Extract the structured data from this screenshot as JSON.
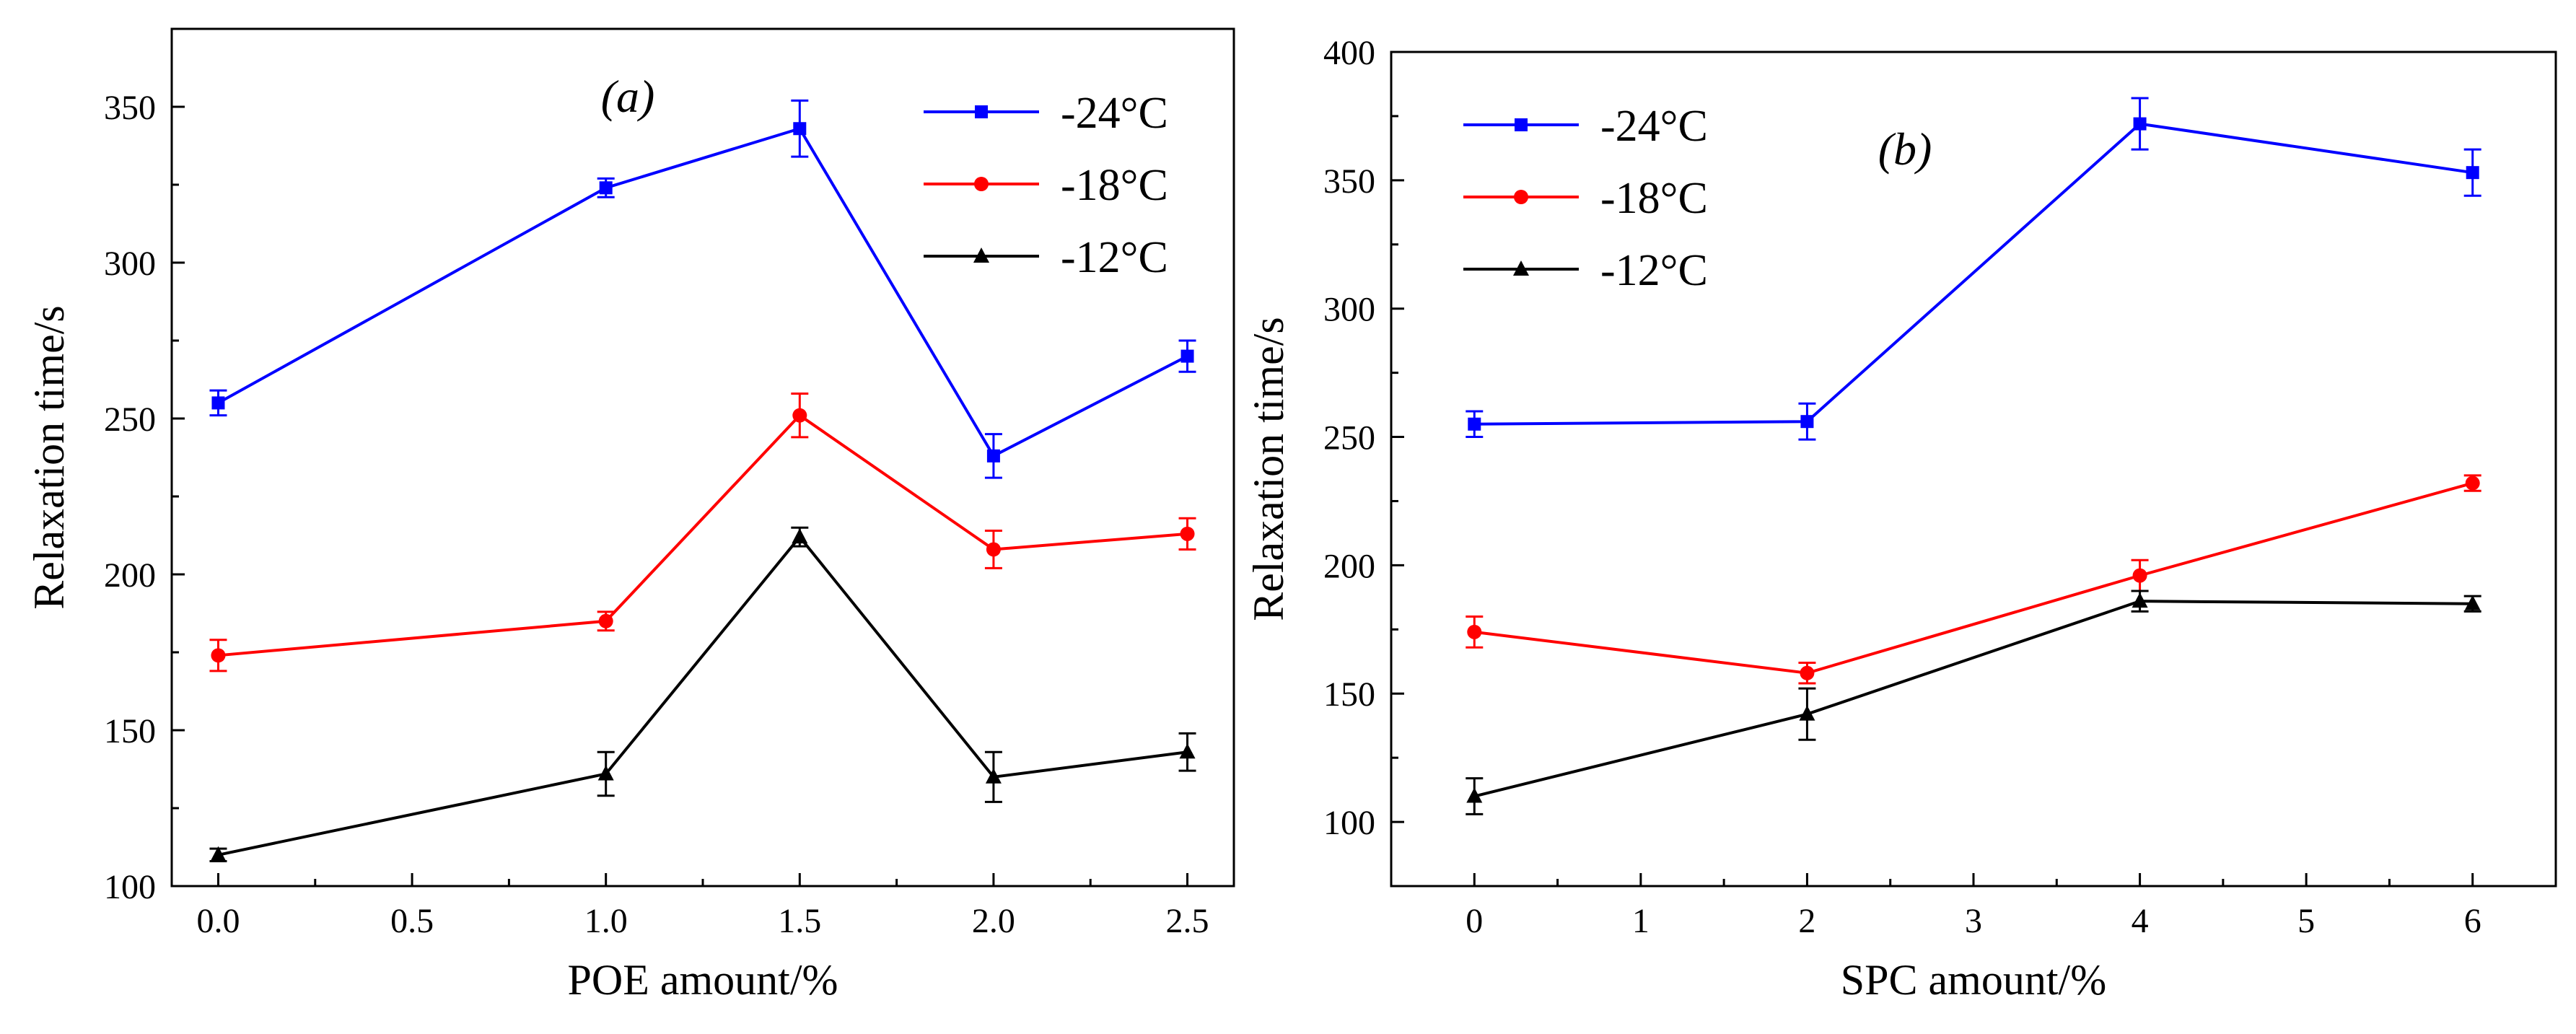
{
  "chart_data": [
    {
      "type": "line",
      "panel_label": "(a)",
      "xlabel": "POE amount/%",
      "ylabel": "Relaxation time/s",
      "xlim": [
        -0.12,
        2.62
      ],
      "ylim": [
        100,
        375
      ],
      "x_ticks": [
        "0.0",
        "0.5",
        "1.0",
        "1.5",
        "2.0",
        "2.5"
      ],
      "x_tick_values": [
        0.0,
        0.5,
        1.0,
        1.5,
        2.0,
        2.5
      ],
      "y_ticks": [
        "100",
        "150",
        "200",
        "250",
        "300",
        "350"
      ],
      "y_tick_values": [
        100,
        150,
        200,
        250,
        300,
        350
      ],
      "legend_position": "top-right",
      "series": [
        {
          "name": "-24°C",
          "color": "#0000ff",
          "marker": "square",
          "x": [
            0.0,
            1.0,
            1.5,
            2.0,
            2.5
          ],
          "y": [
            255,
            324,
            343,
            238,
            270
          ],
          "err": [
            4,
            3,
            9,
            7,
            5
          ]
        },
        {
          "name": "-18°C",
          "color": "#ff0000",
          "marker": "circle",
          "x": [
            0.0,
            1.0,
            1.5,
            2.0,
            2.5
          ],
          "y": [
            174,
            185,
            251,
            208,
            213
          ],
          "err": [
            5,
            3,
            7,
            6,
            5
          ]
        },
        {
          "name": "-12°C",
          "color": "#000000",
          "marker": "triangle",
          "x": [
            0.0,
            1.0,
            1.5,
            2.0,
            2.5
          ],
          "y": [
            110,
            136,
            212,
            135,
            143
          ],
          "err": [
            2,
            7,
            3,
            8,
            6
          ]
        }
      ]
    },
    {
      "type": "line",
      "panel_label": "(b)",
      "xlabel": "SPC amount/%",
      "ylabel": "Relaxation time/s",
      "xlim": [
        -0.5,
        6.5
      ],
      "ylim": [
        75,
        400
      ],
      "x_ticks": [
        "0",
        "1",
        "2",
        "3",
        "4",
        "5",
        "6"
      ],
      "x_tick_values": [
        0,
        1,
        2,
        3,
        4,
        5,
        6
      ],
      "y_ticks": [
        "100",
        "150",
        "200",
        "250",
        "300",
        "350",
        "400"
      ],
      "y_tick_values": [
        100,
        150,
        200,
        250,
        300,
        350,
        400
      ],
      "legend_position": "top-left",
      "series": [
        {
          "name": "-24°C",
          "color": "#0000ff",
          "marker": "square",
          "x": [
            0,
            2,
            4,
            6
          ],
          "y": [
            255,
            256,
            372,
            353
          ],
          "err": [
            5,
            7,
            10,
            9
          ]
        },
        {
          "name": "-18°C",
          "color": "#ff0000",
          "marker": "circle",
          "x": [
            0,
            2,
            4,
            6
          ],
          "y": [
            174,
            158,
            196,
            232
          ],
          "err": [
            6,
            4,
            6,
            3
          ]
        },
        {
          "name": "-12°C",
          "color": "#000000",
          "marker": "triangle",
          "x": [
            0,
            2,
            4,
            6
          ],
          "y": [
            110,
            142,
            186,
            185
          ],
          "err": [
            7,
            10,
            4,
            3
          ]
        }
      ]
    }
  ]
}
